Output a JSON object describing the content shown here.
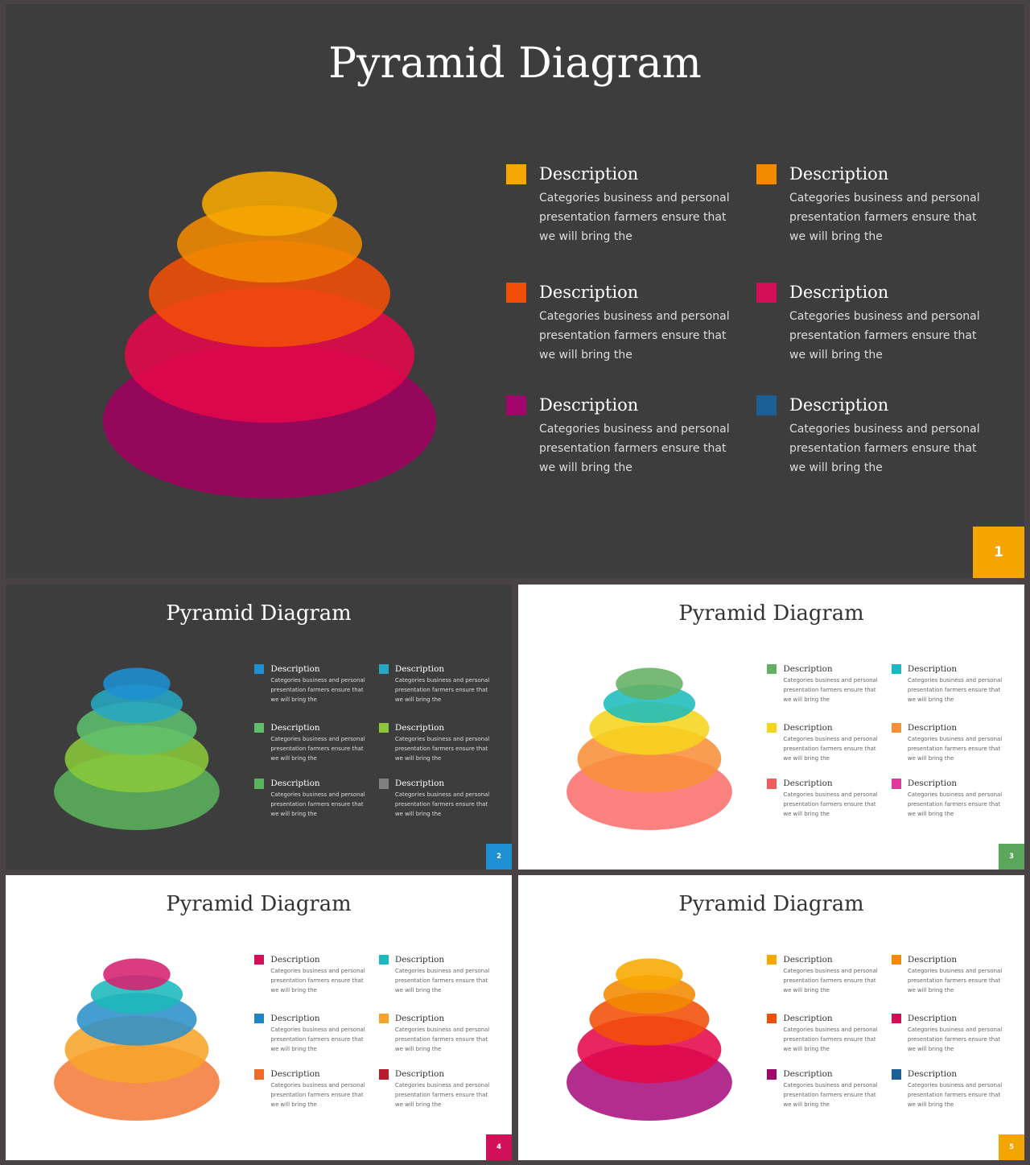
{
  "slides": [
    {
      "title": "Pyramid Diagram",
      "theme": "dark",
      "page_number": "1",
      "page_color": "#f5a500",
      "layer_colors": [
        "#f7a800",
        "#f28a00",
        "#f24e07",
        "#e5084a",
        "#a0005e"
      ],
      "items": [
        {
          "heading": "Description",
          "color": "#f7a800",
          "lines": [
            "Categories business and personal",
            "presentation farmers ensure that",
            "we will bring the"
          ]
        },
        {
          "heading": "Description",
          "color": "#f28a00",
          "lines": [
            "Categories business and personal",
            "presentation farmers ensure that",
            "we will bring the"
          ]
        },
        {
          "heading": "Description",
          "color": "#f24e07",
          "lines": [
            "Categories business and personal",
            "presentation farmers ensure that",
            "we will bring the"
          ]
        },
        {
          "heading": "Description",
          "color": "#d40d57",
          "lines": [
            "Categories business and personal",
            "presentation farmers ensure that",
            "we will bring the"
          ]
        },
        {
          "heading": "Description",
          "color": "#a3066b",
          "lines": [
            "Categories business and personal",
            "presentation farmers ensure that",
            "we will bring the"
          ]
        },
        {
          "heading": "Description",
          "color": "#1a5f96",
          "lines": [
            "Categories business and personal",
            "presentation farmers ensure that",
            "we will bring the"
          ]
        }
      ]
    },
    {
      "title": "Pyramid Diagram",
      "theme": "dark",
      "page_number": "2",
      "page_color": "#1e8fd3",
      "layer_colors": [
        "#1e8fd3",
        "#26a8c4",
        "#5fbf6e",
        "#8ac83a",
        "#5bb35d"
      ],
      "items": [
        {
          "heading": "Description",
          "color": "#1e8fd3",
          "lines": [
            "Categories business and personal",
            "presentation farmers ensure that",
            "we will bring the"
          ]
        },
        {
          "heading": "Description",
          "color": "#26a8c4",
          "lines": [
            "Categories business and personal",
            "presentation farmers ensure that",
            "we will bring the"
          ]
        },
        {
          "heading": "Description",
          "color": "#5fbf6e",
          "lines": [
            "Categories business and personal",
            "presentation farmers ensure that",
            "we will bring the"
          ]
        },
        {
          "heading": "Description",
          "color": "#8ac83a",
          "lines": [
            "Categories business and personal",
            "presentation farmers ensure that",
            "we will bring the"
          ]
        },
        {
          "heading": "Description",
          "color": "#5bb35d",
          "lines": [
            "Categories business and personal",
            "presentation farmers ensure that",
            "we will bring the"
          ]
        },
        {
          "heading": "Description",
          "color": "#808080",
          "lines": [
            "Categories business and personal",
            "presentation farmers ensure that",
            "we will bring the"
          ]
        }
      ]
    },
    {
      "title": "Pyramid Diagram",
      "theme": "light",
      "page_number": "3",
      "page_color": "#5aa65a",
      "layer_colors": [
        "#63b063",
        "#1cbcbc",
        "#f6d41c",
        "#f8903a",
        "#fa6e6e"
      ],
      "items": [
        {
          "heading": "Description",
          "color": "#63b063",
          "lines": [
            "Categories business and personal",
            "presentation farmers ensure that",
            "we will bring the"
          ]
        },
        {
          "heading": "Description",
          "color": "#1cb8c4",
          "lines": [
            "Categories business and personal",
            "presentation farmers ensure that",
            "we will bring the"
          ]
        },
        {
          "heading": "Description",
          "color": "#f6d41c",
          "lines": [
            "Categories business and personal",
            "presentation farmers ensure that",
            "we will bring the"
          ]
        },
        {
          "heading": "Description",
          "color": "#f8903a",
          "lines": [
            "Categories business and personal",
            "presentation farmers ensure that",
            "we will bring the"
          ]
        },
        {
          "heading": "Description",
          "color": "#f25c5c",
          "lines": [
            "Categories business and personal",
            "presentation farmers ensure that",
            "we will bring the"
          ]
        },
        {
          "heading": "Description",
          "color": "#e03a9e",
          "lines": [
            "Categories business and personal",
            "presentation farmers ensure that",
            "we will bring the"
          ]
        }
      ]
    },
    {
      "title": "Pyramid Diagram",
      "theme": "light",
      "page_number": "4",
      "page_color": "#d2105a",
      "layer_colors": [
        "#d62070",
        "#1cb8bc",
        "#2c8fc8",
        "#f7a52a",
        "#f47c3c"
      ],
      "items": [
        {
          "heading": "Description",
          "color": "#d2105a",
          "lines": [
            "Categories business and personal",
            "presentation farmers ensure that",
            "we will bring the"
          ]
        },
        {
          "heading": "Description",
          "color": "#1cb8bc",
          "lines": [
            "Categories business and personal",
            "presentation farmers ensure that",
            "we will bring the"
          ]
        },
        {
          "heading": "Description",
          "color": "#2284c0",
          "lines": [
            "Categories business and personal",
            "presentation farmers ensure that",
            "we will bring the"
          ]
        },
        {
          "heading": "Description",
          "color": "#f7a52a",
          "lines": [
            "Categories business and personal",
            "presentation farmers ensure that",
            "we will bring the"
          ]
        },
        {
          "heading": "Description",
          "color": "#f06a2a",
          "lines": [
            "Categories business and personal",
            "presentation farmers ensure that",
            "we will bring the"
          ]
        },
        {
          "heading": "Description",
          "color": "#b81c2c",
          "lines": [
            "Categories business and personal",
            "presentation farmers ensure that",
            "we will bring the"
          ]
        }
      ]
    },
    {
      "title": "Pyramid Diagram",
      "theme": "light",
      "page_number": "5",
      "page_color": "#f5a500",
      "layer_colors": [
        "#f7a800",
        "#f28a00",
        "#f24e07",
        "#e5084a",
        "#a8107e"
      ],
      "items": [
        {
          "heading": "Description",
          "color": "#f7a800",
          "lines": [
            "Categories business and personal",
            "presentation farmers ensure that",
            "we will bring the"
          ]
        },
        {
          "heading": "Description",
          "color": "#f28a00",
          "lines": [
            "Categories business and personal",
            "presentation farmers ensure that",
            "we will bring the"
          ]
        },
        {
          "heading": "Description",
          "color": "#f24e07",
          "lines": [
            "Categories business and personal",
            "presentation farmers ensure that",
            "we will bring the"
          ]
        },
        {
          "heading": "Description",
          "color": "#d40d57",
          "lines": [
            "Categories business and personal",
            "presentation farmers ensure that",
            "we will bring the"
          ]
        },
        {
          "heading": "Description",
          "color": "#a3066b",
          "lines": [
            "Categories business and personal",
            "presentation farmers ensure that",
            "we will bring the"
          ]
        },
        {
          "heading": "Description",
          "color": "#1a5f96",
          "lines": [
            "Categories business and personal",
            "presentation farmers ensure that",
            "we will bring the"
          ]
        }
      ]
    }
  ]
}
